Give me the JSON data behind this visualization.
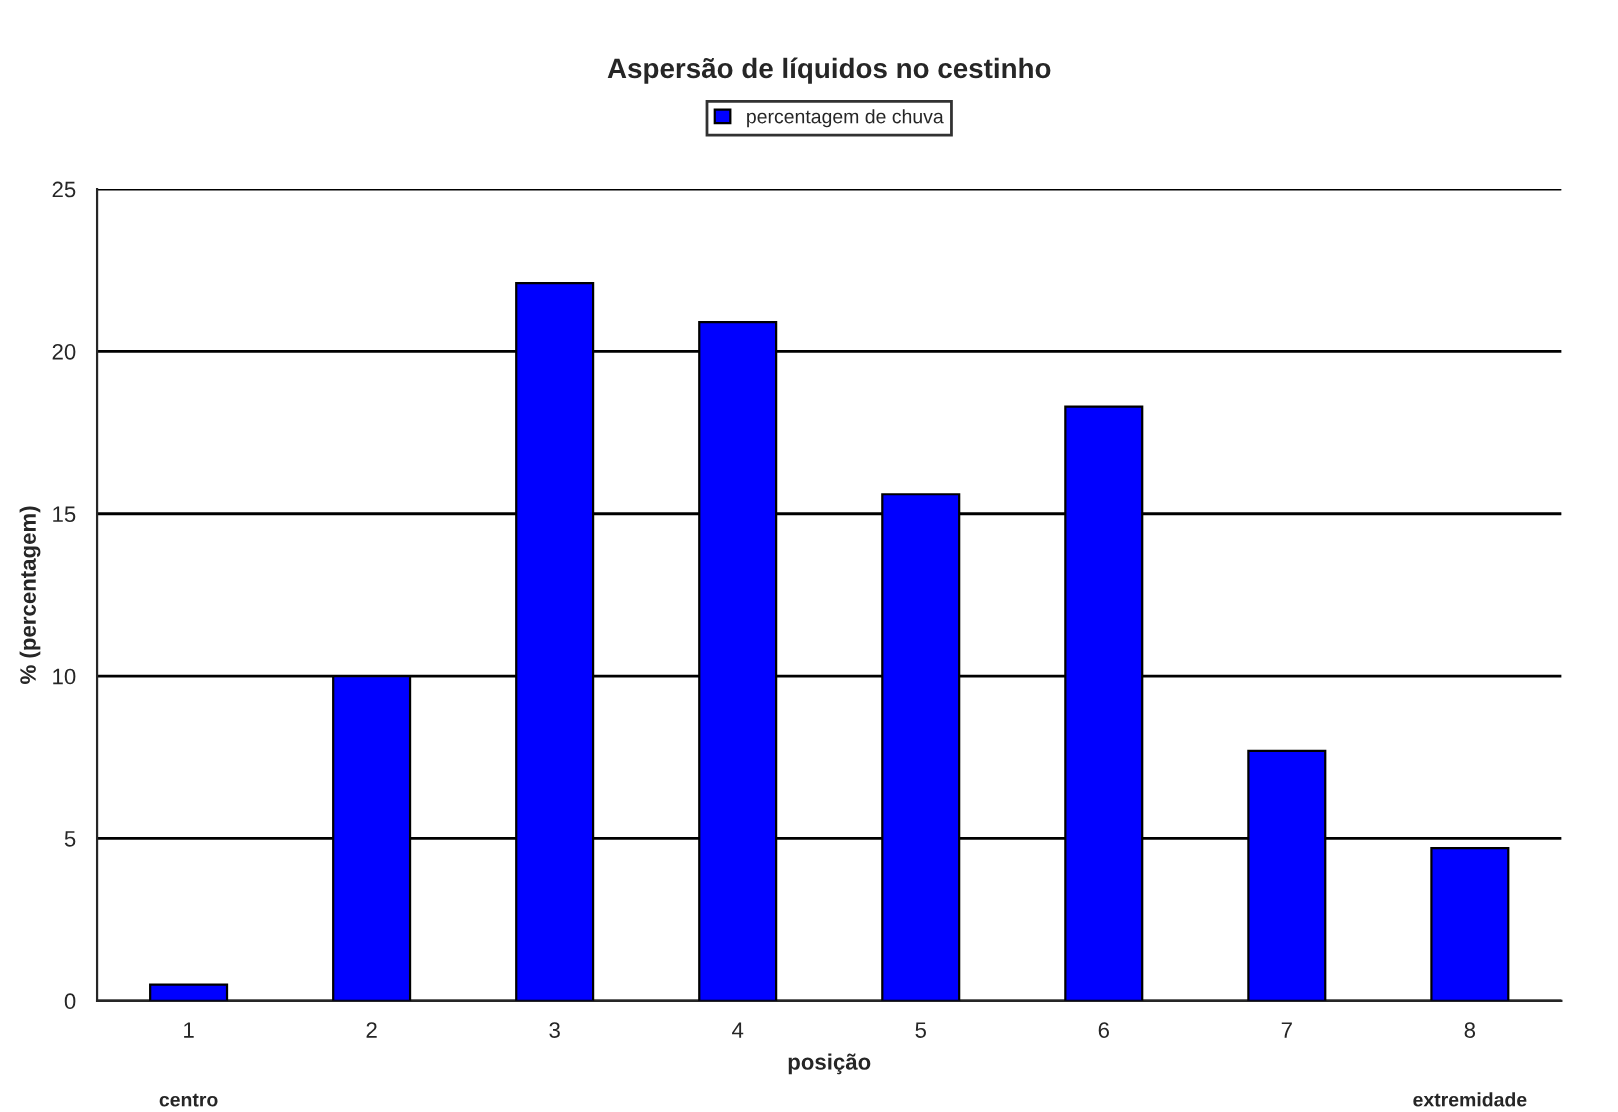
{
  "chart_data": {
    "type": "bar",
    "title": "Aspersão de líquidos no cestinho",
    "xlabel": "posição",
    "ylabel": "% (percentagem)",
    "categories": [
      "1",
      "2",
      "3",
      "4",
      "5",
      "6",
      "7",
      "8"
    ],
    "series": [
      {
        "name": "percentagem de chuva",
        "color": "#0000ff",
        "values": [
          0.5,
          10.0,
          22.1,
          20.9,
          15.6,
          18.3,
          7.7,
          4.7
        ]
      }
    ],
    "ylim": [
      0,
      25
    ],
    "yticks": [
      0,
      5,
      10,
      15,
      20,
      25
    ],
    "grid": "y",
    "legend": "top",
    "annotations": [
      "centro",
      "extremidade"
    ]
  }
}
